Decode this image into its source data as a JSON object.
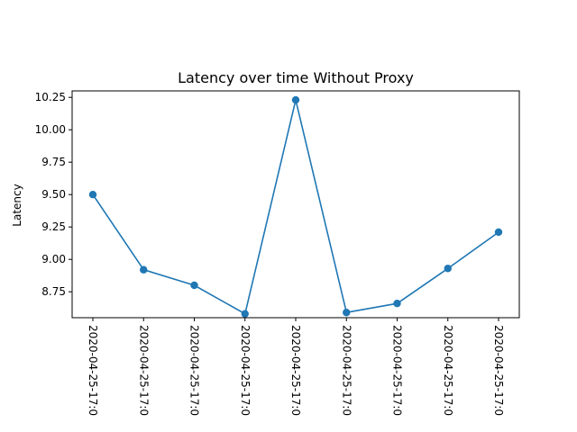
{
  "chart_data": {
    "type": "line",
    "title": "Latency over time Without Proxy",
    "xlabel": "",
    "ylabel": "Latency",
    "x": [
      "2020-04-25-17:0",
      "2020-04-25-17:0",
      "2020-04-25-17:0",
      "2020-04-25-17:0",
      "2020-04-25-17:0",
      "2020-04-25-17:0",
      "2020-04-25-17:0",
      "2020-04-25-17:0",
      "2020-04-25-17:0"
    ],
    "series": [
      {
        "values": [
          9.5,
          8.92,
          8.8,
          8.58,
          10.23,
          8.59,
          8.66,
          8.93,
          9.21
        ],
        "color": "#1f77b4",
        "marker": "circle"
      }
    ],
    "ylim": [
      8.55,
      10.3
    ],
    "yticks": [
      8.75,
      9.0,
      9.25,
      9.5,
      9.75,
      10.0,
      10.25
    ],
    "ytick_labels": [
      "8.75",
      "9.00",
      "9.25",
      "9.50",
      "9.75",
      "10.00",
      "10.25"
    ],
    "xtick_rotation": "vertical",
    "grid": false,
    "legend": false
  }
}
